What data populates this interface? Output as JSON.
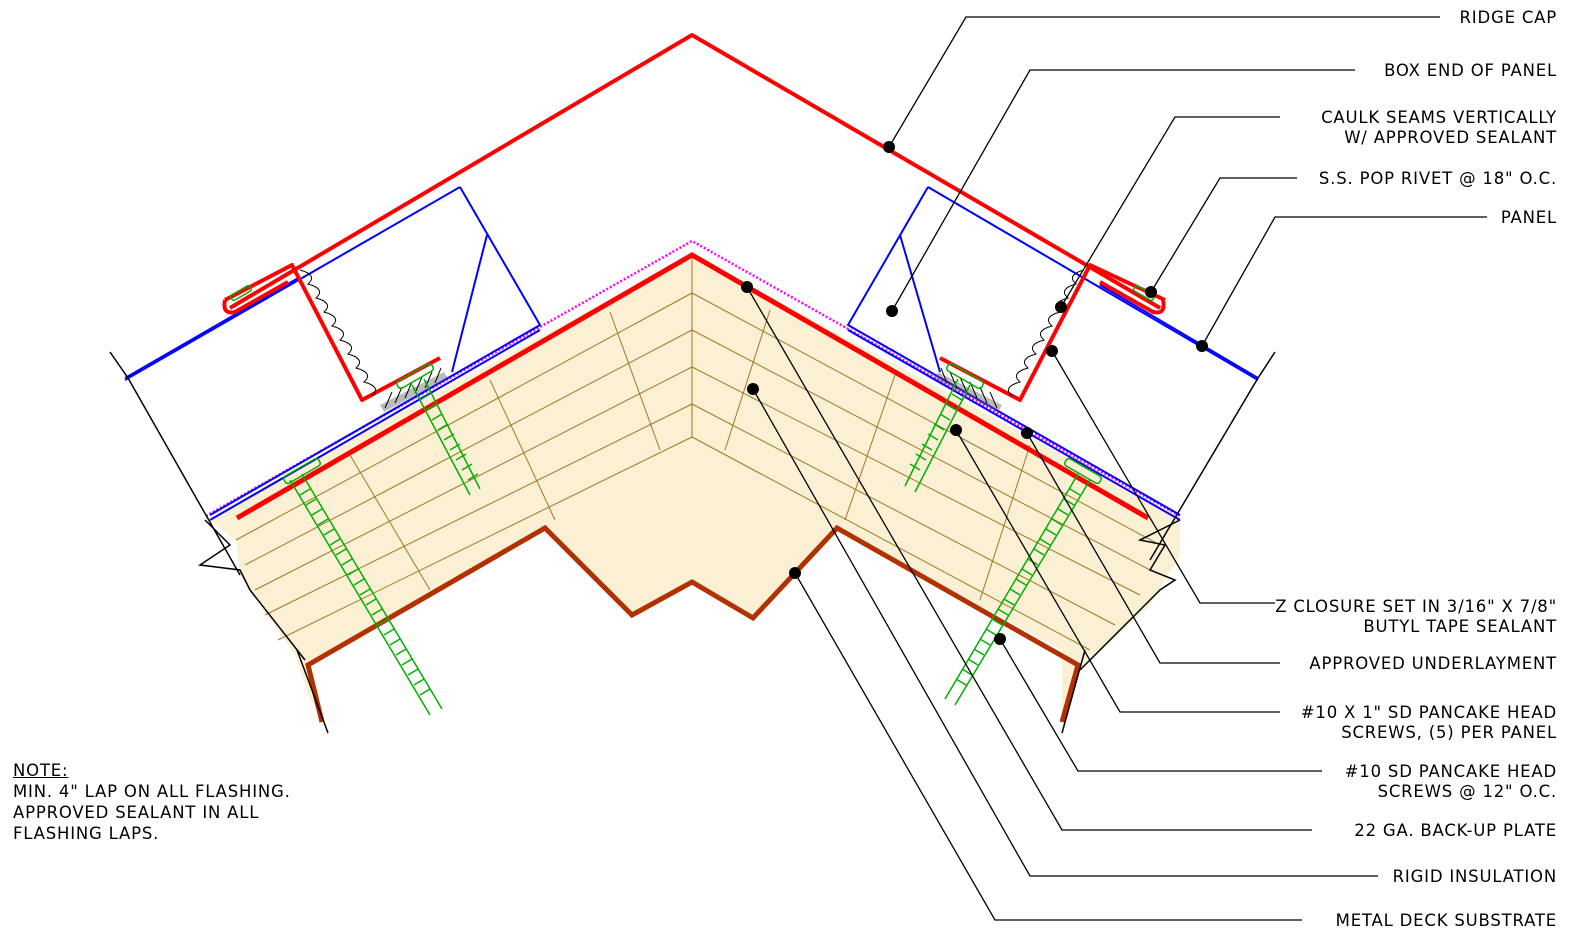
{
  "callouts": [
    {
      "id": "ridge-cap",
      "lines": [
        "RIDGE CAP"
      ]
    },
    {
      "id": "box-end-of-panel",
      "lines": [
        "BOX END OF PANEL"
      ]
    },
    {
      "id": "caulk-seams",
      "lines": [
        "CAULK SEAMS VERTICALLY",
        "W/ APPROVED SEALANT"
      ]
    },
    {
      "id": "pop-rivet",
      "lines": [
        "S.S. POP RIVET @ 18\" O.C."
      ]
    },
    {
      "id": "panel",
      "lines": [
        "PANEL"
      ]
    },
    {
      "id": "z-closure",
      "lines": [
        "Z CLOSURE SET IN 3/16\" X 7/8\"",
        "BUTYL TAPE SEALANT"
      ]
    },
    {
      "id": "underlayment",
      "lines": [
        "APPROVED UNDERLAYMENT"
      ]
    },
    {
      "id": "screws-1in",
      "lines": [
        "#10 X 1\" SD PANCAKE HEAD",
        "SCREWS, (5) PER PANEL"
      ]
    },
    {
      "id": "screws-12oc",
      "lines": [
        "#10 SD PANCAKE HEAD",
        "SCREWS @ 12\" O.C."
      ]
    },
    {
      "id": "backup-plate",
      "lines": [
        "22 GA. BACK-UP PLATE"
      ]
    },
    {
      "id": "rigid-insulation",
      "lines": [
        "RIGID INSULATION"
      ]
    },
    {
      "id": "metal-deck",
      "lines": [
        "METAL DECK SUBSTRATE"
      ]
    }
  ],
  "note": {
    "heading": "NOTE:",
    "lines": [
      "MIN. 4\" LAP ON ALL FLASHING.",
      "APPROVED SEALANT IN ALL",
      "FLASHING LAPS."
    ]
  },
  "colors": {
    "ridge_cap": "#ff0000",
    "panel": "#0000ff",
    "underlayment": "#ff00ff",
    "insulation": "#a07820",
    "deck": "#b33000",
    "screw": "#00b000",
    "leader": "#000000"
  }
}
